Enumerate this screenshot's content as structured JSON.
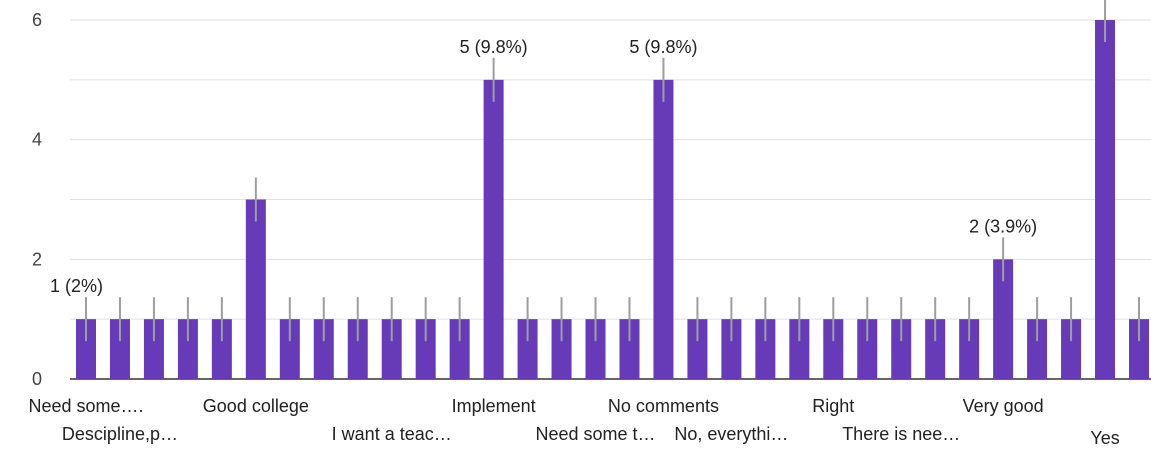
{
  "chart_data": {
    "type": "bar",
    "ylim": [
      0,
      6
    ],
    "yticks": [
      0,
      2,
      4,
      6
    ],
    "grid": true,
    "bar_color": "#673ab7",
    "gridline_color": "#e0e0e0",
    "categories": [
      "Need some….",
      "Descipline,p…",
      "",
      "",
      "",
      "Good college",
      "",
      "",
      "",
      "I want a teac…",
      "",
      "",
      "Implement",
      "",
      "",
      "Need some t…",
      "",
      "No comments",
      "",
      "No, everythi…",
      "",
      "",
      "Right",
      "",
      "There is nee…",
      "",
      "",
      "Very good",
      "",
      "",
      "Yes",
      ""
    ],
    "values": [
      1,
      1,
      1,
      1,
      1,
      3,
      1,
      1,
      1,
      1,
      1,
      1,
      5,
      1,
      1,
      1,
      1,
      5,
      1,
      1,
      1,
      1,
      1,
      1,
      1,
      1,
      1,
      2,
      1,
      1,
      6,
      1
    ],
    "data_labels": {
      "0": "1 (2%)",
      "12": "5 (9.8%)",
      "17": "5 (9.8%)",
      "27": "2 (3.9%)"
    },
    "x_tick_labels_row1": [
      {
        "index": 0,
        "text": "Need some…."
      },
      {
        "index": 5,
        "text": "Good college"
      },
      {
        "index": 12,
        "text": "Implement"
      },
      {
        "index": 17,
        "text": "No comments"
      },
      {
        "index": 22,
        "text": "Right"
      },
      {
        "index": 27,
        "text": "Very good"
      }
    ],
    "x_tick_labels_row2": [
      {
        "index": 1,
        "text": "Descipline,p…"
      },
      {
        "index": 9,
        "text": "I want a teac…"
      },
      {
        "index": 15,
        "text": "Need some t…"
      },
      {
        "index": 19,
        "text": "No, everythi…"
      },
      {
        "index": 24,
        "text": "There is nee…"
      },
      {
        "index": 30,
        "text": "Yes"
      }
    ]
  }
}
